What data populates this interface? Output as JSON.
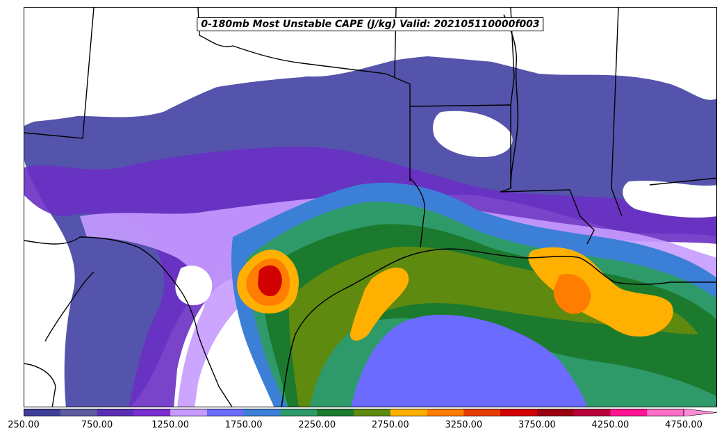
{
  "title": "0-180mb Most Unstable CAPE (J/kg) Valid: 202105110000f003",
  "colorbar": {
    "colors": [
      "#3f3f99",
      "#5b5b9e",
      "#5a2db2",
      "#7b2fd0",
      "#c79bff",
      "#6b6bff",
      "#3c7fd6",
      "#2e9a6a",
      "#1b7a2e",
      "#5f8a10",
      "#ffb000",
      "#ff7d00",
      "#e63d00",
      "#d20000",
      "#9a0010",
      "#b8003c",
      "#ff1493",
      "#ff6ec7"
    ],
    "extend_color": "#ff8ad8",
    "tick_labels": [
      "250.00",
      "750.00",
      "1250.00",
      "1750.00",
      "2250.00",
      "2750.00",
      "3250.00",
      "3750.00",
      "4250.00",
      "4750.00"
    ]
  },
  "legend": {
    "min_cape": 250,
    "max_cape": 4750,
    "step": 250
  }
}
